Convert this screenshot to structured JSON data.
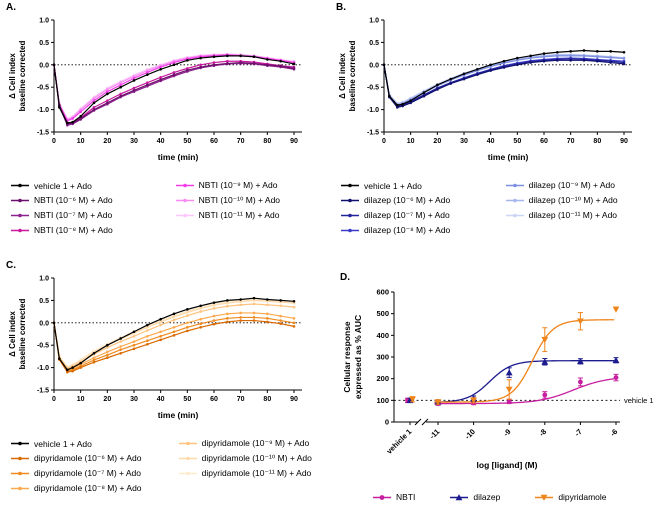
{
  "panels": {
    "A": {
      "label": "A."
    },
    "B": {
      "label": "B."
    },
    "C": {
      "label": "C."
    },
    "D": {
      "label": "D."
    }
  },
  "chart_data": [
    {
      "panel": "A",
      "type": "line",
      "xlabel": "time (min)",
      "ylabel_lines": [
        "Δ Cell index",
        "baseline corrected"
      ],
      "xlim": [
        0,
        93
      ],
      "ylim": [
        -1.5,
        1.0
      ],
      "xticks": [
        0,
        10,
        20,
        30,
        40,
        50,
        60,
        70,
        80,
        90
      ],
      "yticks": [
        -1.5,
        -1.0,
        -0.5,
        0,
        0.5,
        1.0
      ],
      "zero_line": 0,
      "x": [
        0,
        2,
        5,
        7,
        10,
        15,
        20,
        25,
        30,
        35,
        40,
        45,
        50,
        55,
        60,
        65,
        70,
        75,
        80,
        85,
        90
      ],
      "series": [
        {
          "name": "vehicle 1 + Ado",
          "color": "#000000",
          "values": [
            0,
            -0.95,
            -1.3,
            -1.28,
            -1.15,
            -0.85,
            -0.65,
            -0.5,
            -0.35,
            -0.22,
            -0.1,
            0.0,
            0.1,
            0.15,
            0.18,
            0.2,
            0.2,
            0.18,
            0.12,
            0.08,
            0.02
          ]
        },
        {
          "name": "NBTI (10⁻⁶ M) + Ado",
          "color": "#6B0F6B",
          "values": [
            0,
            -0.9,
            -1.32,
            -1.3,
            -1.2,
            -1.0,
            -0.85,
            -0.7,
            -0.57,
            -0.45,
            -0.33,
            -0.22,
            -0.12,
            -0.05,
            0.0,
            0.03,
            0.05,
            0.03,
            0.0,
            -0.03,
            -0.08
          ]
        },
        {
          "name": "NBTI (10⁻⁷ M) + Ado",
          "color": "#8E1F8E",
          "values": [
            0,
            -0.92,
            -1.35,
            -1.32,
            -1.22,
            -1.02,
            -0.88,
            -0.72,
            -0.6,
            -0.48,
            -0.36,
            -0.25,
            -0.15,
            -0.07,
            -0.02,
            0.02,
            0.03,
            0.02,
            -0.02,
            -0.05,
            -0.1
          ]
        },
        {
          "name": "NBTI (10⁻⁸ M) + Ado",
          "color": "#C9189C",
          "values": [
            0,
            -0.9,
            -1.3,
            -1.28,
            -1.18,
            -0.95,
            -0.8,
            -0.65,
            -0.52,
            -0.4,
            -0.28,
            -0.17,
            -0.08,
            0.0,
            0.05,
            0.08,
            0.08,
            0.06,
            0.02,
            -0.02,
            -0.05
          ]
        },
        {
          "name": "NBTI (10⁻⁹ M) + Ado",
          "color": "#F23CE8",
          "values": [
            0,
            -0.9,
            -1.25,
            -1.2,
            -1.05,
            -0.8,
            -0.6,
            -0.45,
            -0.3,
            -0.17,
            -0.05,
            0.05,
            0.13,
            0.18,
            0.2,
            0.22,
            0.2,
            0.18,
            0.14,
            0.1,
            0.05
          ]
        },
        {
          "name": "NBTI (10⁻¹⁰ M) + Ado",
          "color": "#F98CF3",
          "values": [
            0,
            -0.88,
            -1.22,
            -1.18,
            -1.0,
            -0.75,
            -0.55,
            -0.4,
            -0.26,
            -0.13,
            -0.02,
            0.08,
            0.15,
            0.2,
            0.22,
            0.23,
            0.22,
            0.2,
            0.15,
            0.1,
            0.06
          ]
        },
        {
          "name": "NBTI (10⁻¹¹ M) + Ado",
          "color": "#FCC6F9",
          "values": [
            0,
            -0.85,
            -1.2,
            -1.15,
            -0.98,
            -0.72,
            -0.52,
            -0.37,
            -0.23,
            -0.1,
            0.0,
            0.1,
            0.17,
            0.21,
            0.23,
            0.24,
            0.23,
            0.2,
            0.16,
            0.12,
            0.08
          ]
        }
      ]
    },
    {
      "panel": "B",
      "type": "line",
      "xlabel": "time (min)",
      "ylabel_lines": [
        "Δ Cell index",
        "baseline corrected"
      ],
      "xlim": [
        0,
        93
      ],
      "ylim": [
        -1.5,
        1.0
      ],
      "xticks": [
        0,
        10,
        20,
        30,
        40,
        50,
        60,
        70,
        80,
        90
      ],
      "yticks": [
        -1.5,
        -1.0,
        -0.5,
        0,
        0.5,
        1.0
      ],
      "zero_line": 0,
      "x": [
        0,
        2,
        5,
        7,
        10,
        15,
        20,
        25,
        30,
        35,
        40,
        45,
        50,
        55,
        60,
        65,
        70,
        75,
        80,
        85,
        90
      ],
      "series": [
        {
          "name": "vehicle 1 + Ado",
          "color": "#000000",
          "values": [
            0,
            -0.7,
            -0.9,
            -0.88,
            -0.8,
            -0.62,
            -0.45,
            -0.32,
            -0.2,
            -0.1,
            0.0,
            0.08,
            0.15,
            0.2,
            0.25,
            0.28,
            0.3,
            0.32,
            0.3,
            0.3,
            0.28
          ]
        },
        {
          "name": "dilazep (10⁻⁶ M) + Ado",
          "color": "#10106E",
          "values": [
            0,
            -0.72,
            -0.95,
            -0.92,
            -0.85,
            -0.7,
            -0.55,
            -0.42,
            -0.32,
            -0.22,
            -0.13,
            -0.06,
            0.0,
            0.05,
            0.08,
            0.1,
            0.1,
            0.1,
            0.08,
            0.05,
            0.02
          ]
        },
        {
          "name": "dilazep (10⁻⁷ M) + Ado",
          "color": "#22229A",
          "values": [
            0,
            -0.7,
            -0.92,
            -0.9,
            -0.82,
            -0.67,
            -0.52,
            -0.4,
            -0.3,
            -0.2,
            -0.11,
            -0.04,
            0.02,
            0.07,
            0.1,
            0.12,
            0.13,
            0.12,
            0.1,
            0.08,
            0.05
          ]
        },
        {
          "name": "dilazep (10⁻⁸ M) + Ado",
          "color": "#3A3AC8",
          "values": [
            0,
            -0.72,
            -0.93,
            -0.9,
            -0.83,
            -0.68,
            -0.53,
            -0.4,
            -0.29,
            -0.19,
            -0.1,
            -0.02,
            0.04,
            0.09,
            0.12,
            0.14,
            0.15,
            0.14,
            0.12,
            0.1,
            0.08
          ]
        },
        {
          "name": "dilazep (10⁻⁹ M) + Ado",
          "color": "#7D8FE0",
          "values": [
            0,
            -0.7,
            -0.9,
            -0.87,
            -0.78,
            -0.62,
            -0.47,
            -0.34,
            -0.23,
            -0.13,
            -0.04,
            0.04,
            0.1,
            0.15,
            0.18,
            0.2,
            0.2,
            0.2,
            0.18,
            0.16,
            0.14
          ]
        },
        {
          "name": "dilazep (10⁻¹⁰ M) + Ado",
          "color": "#A6B6EE",
          "values": [
            0,
            -0.68,
            -0.88,
            -0.85,
            -0.76,
            -0.6,
            -0.45,
            -0.32,
            -0.21,
            -0.11,
            -0.02,
            0.06,
            0.12,
            0.17,
            0.2,
            0.22,
            0.22,
            0.21,
            0.2,
            0.18,
            0.15
          ]
        },
        {
          "name": "dilazep (10⁻¹¹ M) + Ado",
          "color": "#CBD5F6",
          "values": [
            0,
            -0.66,
            -0.86,
            -0.83,
            -0.74,
            -0.58,
            -0.43,
            -0.3,
            -0.19,
            -0.09,
            0.0,
            0.08,
            0.14,
            0.18,
            0.21,
            0.23,
            0.23,
            0.22,
            0.2,
            0.18,
            0.16
          ]
        }
      ]
    },
    {
      "panel": "C",
      "type": "line",
      "xlabel": "time (min)",
      "ylabel_lines": [
        "Δ Cell index",
        "baseline corrected"
      ],
      "xlim": [
        0,
        93
      ],
      "ylim": [
        -1.5,
        1.0
      ],
      "xticks": [
        0,
        10,
        20,
        30,
        40,
        50,
        60,
        70,
        80,
        90
      ],
      "yticks": [
        -1.5,
        -1.0,
        -0.5,
        0,
        0.5,
        1.0
      ],
      "zero_line": 0,
      "x": [
        0,
        2,
        5,
        7,
        10,
        15,
        20,
        25,
        30,
        35,
        40,
        45,
        50,
        55,
        60,
        65,
        70,
        75,
        80,
        85,
        90
      ],
      "series": [
        {
          "name": "vehicle 1 + Ado",
          "color": "#000000",
          "values": [
            0,
            -0.8,
            -1.05,
            -1.0,
            -0.9,
            -0.68,
            -0.5,
            -0.35,
            -0.2,
            -0.05,
            0.08,
            0.2,
            0.3,
            0.38,
            0.45,
            0.5,
            0.52,
            0.55,
            0.52,
            0.5,
            0.48
          ]
        },
        {
          "name": "dipyridamole (10⁻⁶ M) + Ado",
          "color": "#D96A00",
          "values": [
            0,
            -0.82,
            -1.1,
            -1.08,
            -1.0,
            -0.88,
            -0.78,
            -0.68,
            -0.58,
            -0.48,
            -0.38,
            -0.28,
            -0.18,
            -0.1,
            -0.03,
            0.02,
            0.05,
            0.05,
            0.02,
            -0.02,
            -0.08
          ]
        },
        {
          "name": "dipyridamole (10⁻⁷ M) + Ado",
          "color": "#F08A1D",
          "values": [
            0,
            -0.8,
            -1.08,
            -1.05,
            -0.97,
            -0.83,
            -0.72,
            -0.6,
            -0.5,
            -0.4,
            -0.3,
            -0.2,
            -0.1,
            -0.02,
            0.05,
            0.1,
            0.12,
            0.12,
            0.1,
            0.05,
            0.0
          ]
        },
        {
          "name": "dipyridamole (10⁻⁸ M) + Ado",
          "color": "#FBA94C",
          "values": [
            0,
            -0.8,
            -1.06,
            -1.02,
            -0.93,
            -0.78,
            -0.65,
            -0.53,
            -0.42,
            -0.3,
            -0.2,
            -0.1,
            0.0,
            0.08,
            0.15,
            0.2,
            0.22,
            0.22,
            0.2,
            0.15,
            0.1
          ]
        },
        {
          "name": "dipyridamole (10⁻⁹ M) + Ado",
          "color": "#FFC37E",
          "values": [
            0,
            -0.78,
            -1.02,
            -0.98,
            -0.88,
            -0.7,
            -0.55,
            -0.42,
            -0.3,
            -0.17,
            -0.05,
            0.06,
            0.16,
            0.25,
            0.32,
            0.37,
            0.4,
            0.42,
            0.4,
            0.38,
            0.35
          ]
        },
        {
          "name": "dipyridamole (10⁻¹⁰ M) + Ado",
          "color": "#FFD9A8",
          "values": [
            0,
            -0.76,
            -1.0,
            -0.95,
            -0.85,
            -0.66,
            -0.5,
            -0.36,
            -0.23,
            -0.1,
            0.02,
            0.13,
            0.23,
            0.32,
            0.39,
            0.44,
            0.47,
            0.5,
            0.48,
            0.46,
            0.44
          ]
        },
        {
          "name": "dipyridamole (10⁻¹¹ M) + Ado",
          "color": "#FFEACC",
          "values": [
            0,
            -0.75,
            -0.98,
            -0.93,
            -0.82,
            -0.63,
            -0.47,
            -0.33,
            -0.2,
            -0.07,
            0.05,
            0.16,
            0.26,
            0.35,
            0.42,
            0.47,
            0.5,
            0.52,
            0.5,
            0.48,
            0.46
          ]
        }
      ]
    },
    {
      "panel": "D",
      "type": "scatter",
      "xlabel": "log [ligand] (M)",
      "ylabel_lines": [
        "Cellular response",
        "expressed as % AUC"
      ],
      "ylim": [
        0,
        600
      ],
      "yticks": [
        0,
        100,
        200,
        300,
        400,
        500,
        600
      ],
      "x_categories": [
        "vehicle 1",
        "-11",
        "-10",
        "-9",
        "-8",
        "-7",
        "-6"
      ],
      "baseline": {
        "y": 100,
        "label": "vehicle 1"
      },
      "series": [
        {
          "name": "NBTI",
          "color": "#C71FA0",
          "marker": "circle",
          "values": [
            100,
            85,
            88,
            95,
            125,
            185,
            205
          ],
          "errors": [
            10,
            8,
            8,
            10,
            15,
            18,
            15
          ],
          "fit": {
            "bottom": 85,
            "top": 210,
            "logec50": -7.2,
            "hill": 0.9
          }
        },
        {
          "name": "dilazep",
          "color": "#1C1C8F",
          "marker": "triangle",
          "values": [
            100,
            92,
            108,
            228,
            278,
            280,
            285
          ],
          "errors": [
            10,
            10,
            12,
            22,
            15,
            12,
            12
          ],
          "fit": {
            "bottom": 90,
            "top": 283,
            "logec50": -9.55,
            "hill": 1.4
          }
        },
        {
          "name": "dipyridamole",
          "color": "#EF8418",
          "marker": "triangle-down",
          "values": [
            105,
            92,
            100,
            150,
            380,
            465,
            520
          ],
          "errors": [
            12,
            10,
            12,
            45,
            55,
            40,
            0
          ],
          "fit": {
            "bottom": 92,
            "top": 472,
            "logec50": -8.35,
            "hill": 1.5
          }
        }
      ]
    }
  ]
}
